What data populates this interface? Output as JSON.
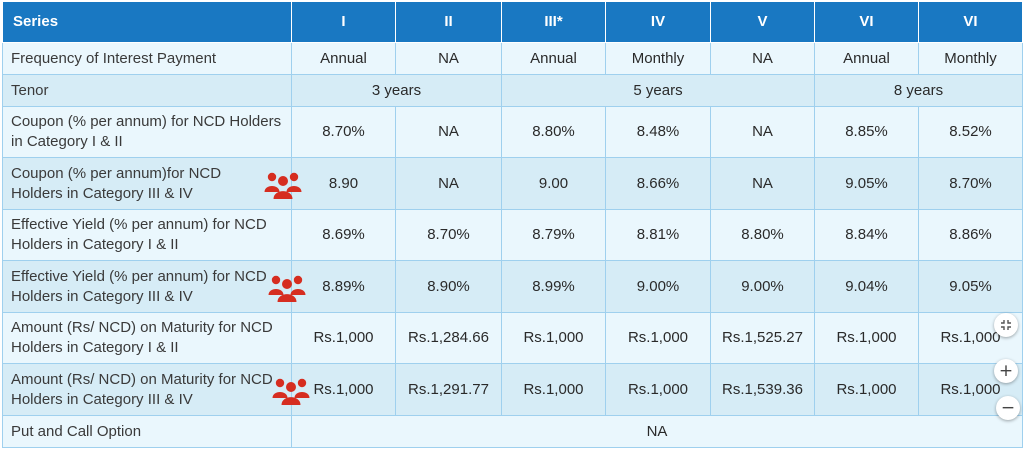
{
  "header": {
    "series_label": "Series",
    "columns": [
      "I",
      "II",
      "III*",
      "IV",
      "V",
      "VI",
      "VI"
    ]
  },
  "rows": [
    {
      "label": "Frequency of Interest Payment",
      "cells": [
        "Annual",
        "NA",
        "Annual",
        "Monthly",
        "NA",
        "Annual",
        "Monthly"
      ]
    },
    {
      "label": "Tenor",
      "groups": [
        "3 years",
        "5 years",
        "8 years"
      ]
    },
    {
      "label": "Coupon (% per annum) for NCD Holders in Category I & II",
      "cells": [
        "8.70%",
        "NA",
        "8.80%",
        "8.48%",
        "NA",
        "8.85%",
        "8.52%"
      ]
    },
    {
      "label": "Coupon (% per annum)for NCD Holders in Category III & IV",
      "cells": [
        "8.90",
        "NA",
        "9.00",
        "8.66%",
        "NA",
        "9.05%",
        "8.70%"
      ]
    },
    {
      "label": "Effective Yield (% per annum) for NCD Holders in Category I & II",
      "cells": [
        "8.69%",
        "8.70%",
        "8.79%",
        "8.81%",
        "8.80%",
        "8.84%",
        "8.86%"
      ]
    },
    {
      "label": "Effective Yield (% per annum) for NCD Holders in Category III & IV",
      "cells": [
        "8.89%",
        "8.90%",
        "8.99%",
        "9.00%",
        "9.00%",
        "9.04%",
        "9.05%"
      ]
    },
    {
      "label": "Amount (Rs/ NCD) on Maturity for NCD Holders in Category I & II",
      "cells": [
        "Rs.1,000",
        "Rs.1,284.66",
        "Rs.1,000",
        "Rs.1,000",
        "Rs.1,525.27",
        "Rs.1,000",
        "Rs.1,000"
      ]
    },
    {
      "label": "Amount (Rs/ NCD) on Maturity for NCD Holders in Category III & IV",
      "cells": [
        "Rs.1,000",
        "Rs.1,291.77",
        "Rs.1,000",
        "Rs.1,000",
        "Rs.1,539.36",
        "Rs.1,000",
        "Rs.1,000"
      ]
    },
    {
      "label": "Put and Call Option",
      "merged": "NA"
    }
  ],
  "icons": {
    "group": "people-group-icon",
    "color": "#d62d20"
  },
  "controls": {
    "zoom_in": "+",
    "zoom_out": "−"
  },
  "colors": {
    "header_bg": "#1978c2",
    "row_light": "#eaf7fd",
    "row_dark": "#d6ecf6",
    "border": "#9fd0ee"
  }
}
